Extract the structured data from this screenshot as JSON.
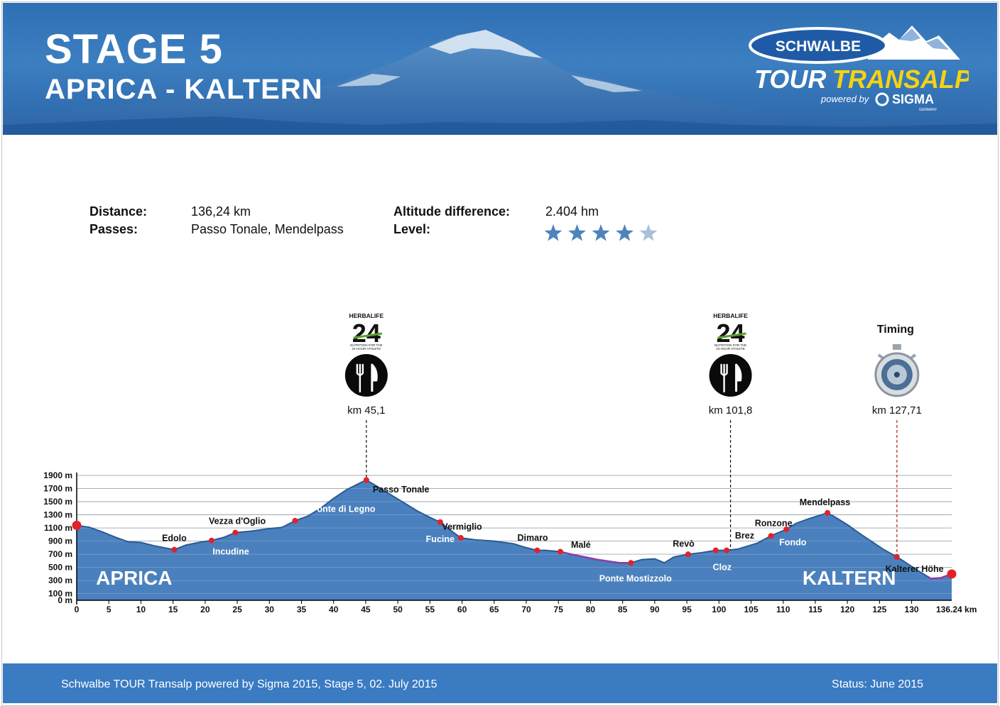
{
  "header": {
    "stage": "STAGE 5",
    "route": "APRICA - KALTERN",
    "logo": {
      "brand": "SCHWALBE",
      "word1": "TOUR",
      "word2": "TRANSALP",
      "powered": "powered by",
      "sponsor": "SIGMA",
      "country": "GERMANY"
    }
  },
  "info": {
    "distance_label": "Distance:",
    "distance_value": "136,24 km",
    "passes_label": "Passes:",
    "passes_value": "Passo Tonale, Mendelpass",
    "altitude_label": "Altitude difference:",
    "altitude_value": "2.404 hm",
    "level_label": "Level:",
    "level_value": 4,
    "level_max": 5
  },
  "colors": {
    "header_blue": "#3a7bc2",
    "profile_fill": "#4a80bd",
    "profile_line": "#2a5a94",
    "descent_line": "#8e3aa8",
    "marker_red": "#e32128",
    "star_on": "#4f83bb",
    "star_off": "#a9c0dc"
  },
  "chart_data": {
    "type": "area",
    "xlabel": "km",
    "ylabel": "",
    "xlim": [
      0,
      136.24
    ],
    "ylim": [
      0,
      1900
    ],
    "x_ticks": [
      0,
      5,
      10,
      15,
      20,
      25,
      30,
      35,
      40,
      45,
      50,
      55,
      60,
      65,
      70,
      75,
      80,
      85,
      90,
      95,
      100,
      105,
      110,
      115,
      120,
      125,
      130
    ],
    "x_end_label": "136.24 km",
    "y_ticks": [
      {
        "value": 0,
        "label": "0 m"
      },
      {
        "value": 100,
        "label": "100 m"
      },
      {
        "value": 300,
        "label": "300 m"
      },
      {
        "value": 500,
        "label": "500 m"
      },
      {
        "value": 700,
        "label": "700 m"
      },
      {
        "value": 900,
        "label": "900 m"
      },
      {
        "value": 1100,
        "label": "1100 m"
      },
      {
        "value": 1300,
        "label": "1300 m"
      },
      {
        "value": 1500,
        "label": "1500 m"
      },
      {
        "value": 1700,
        "label": "1700 m"
      },
      {
        "value": 1900,
        "label": "1900 m"
      }
    ],
    "grid": true,
    "series": [
      {
        "x": [
          0,
          2,
          4,
          6,
          8,
          10,
          12,
          15.2,
          17,
          19,
          21,
          23,
          24.7,
          27,
          30,
          32,
          34,
          36,
          38,
          40,
          42,
          44,
          45.1,
          47,
          49,
          51,
          53,
          55,
          56.6,
          58,
          59.8,
          62,
          65,
          68,
          70,
          71.7,
          73,
          75.3,
          77,
          79,
          81,
          83,
          84.5,
          86.3,
          88,
          90,
          91.5,
          93,
          95.2,
          97,
          99.5,
          101.2,
          103,
          105,
          106,
          108.1,
          110.5,
          112,
          114,
          116.9,
          118,
          120,
          122,
          124,
          125.5,
          127.7,
          129,
          131,
          133,
          134.5,
          136.24
        ],
        "y": [
          1140,
          1110,
          1040,
          960,
          890,
          880,
          830,
          770,
          840,
          880,
          910,
          960,
          1030,
          1050,
          1090,
          1110,
          1210,
          1280,
          1400,
          1550,
          1680,
          1780,
          1830,
          1720,
          1600,
          1480,
          1360,
          1260,
          1190,
          1080,
          950,
          920,
          900,
          860,
          800,
          760,
          760,
          740,
          700,
          660,
          620,
          590,
          570,
          570,
          620,
          630,
          570,
          660,
          700,
          720,
          760,
          760,
          780,
          840,
          870,
          980,
          1080,
          1170,
          1240,
          1330,
          1270,
          1150,
          1010,
          880,
          780,
          660,
          580,
          450,
          330,
          340,
          400
        ]
      }
    ],
    "descent_segments": [
      [
        75.3,
        86.3
      ],
      [
        132.5,
        136.24
      ]
    ],
    "markers": [
      0,
      15.2,
      21,
      24.7,
      34,
      45.1,
      56.6,
      59.8,
      71.7,
      75.3,
      86.3,
      95.2,
      99.5,
      101.2,
      108.1,
      110.5,
      116.9,
      127.7,
      136.24
    ],
    "place_labels": [
      {
        "name": "Edolo",
        "km": 15.2,
        "pos": "above"
      },
      {
        "name": "Incudine",
        "km": 24,
        "pos": "below"
      },
      {
        "name": "Vezza d'Oglio",
        "km": 25,
        "pos": "above"
      },
      {
        "name": "Ponte di Legno",
        "km": 41.5,
        "pos": "below"
      },
      {
        "name": "Passo Tonale",
        "km": 50.5,
        "pos": "above"
      },
      {
        "name": "Vermiglio",
        "km": 60,
        "pos": "above"
      },
      {
        "name": "Fucine",
        "km": 56.6,
        "pos": "below"
      },
      {
        "name": "Dimaro",
        "km": 71,
        "pos": "above"
      },
      {
        "name": "Malé",
        "km": 78.5,
        "pos": "above"
      },
      {
        "name": "Ponte Mostizzolo",
        "km": 87,
        "pos": "below"
      },
      {
        "name": "Revò",
        "km": 94.5,
        "pos": "above"
      },
      {
        "name": "Cloz",
        "km": 100.5,
        "pos": "below"
      },
      {
        "name": "Brez",
        "km": 104,
        "pos": "above"
      },
      {
        "name": "Ronzone",
        "km": 108.5,
        "pos": "above"
      },
      {
        "name": "Fondo",
        "km": 111.5,
        "pos": "below"
      },
      {
        "name": "Mendelpass",
        "km": 116.5,
        "pos": "above"
      },
      {
        "name": "Kalterer Höhe",
        "km": 132,
        "pos": "right"
      }
    ],
    "big_labels": {
      "start": "APRICA",
      "end": "KALTERN"
    },
    "stations": [
      {
        "type": "food",
        "km": 45.1,
        "label": "km 45,1",
        "sponsor": "HERBALIFE",
        "sponsor_number": "24",
        "tagline1": "NUTRITION FOR THE",
        "tagline2": "24-HOUR ATHLETE"
      },
      {
        "type": "food",
        "km": 101.8,
        "label": "km 101,8",
        "sponsor": "HERBALIFE",
        "sponsor_number": "24",
        "tagline1": "NUTRITION FOR THE",
        "tagline2": "24-HOUR ATHLETE"
      },
      {
        "type": "timing",
        "km": 127.71,
        "label": "km 127,71",
        "title": "Timing"
      }
    ]
  },
  "footer": {
    "left": "Schwalbe TOUR Transalp powered by Sigma 2015, Stage 5, 02. July 2015",
    "right": "Status: June 2015"
  }
}
